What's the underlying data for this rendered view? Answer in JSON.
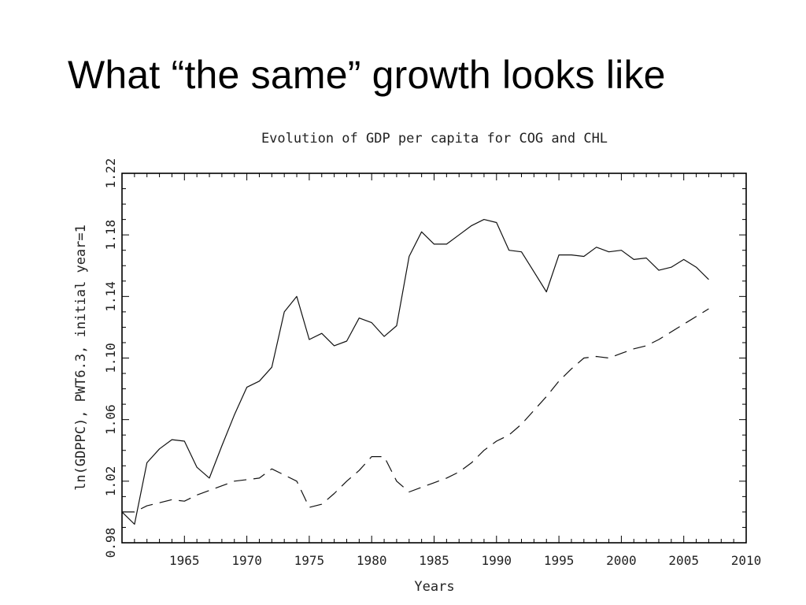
{
  "slide": {
    "title": "What “the same” growth looks like"
  },
  "chart_data": {
    "type": "line",
    "title": "Evolution of GDP per capita for COG and CHL",
    "xlabel": "Years",
    "ylabel": "ln(GDPPC), PWT6.3, initial year=1",
    "xlim": [
      1960,
      2010
    ],
    "ylim": [
      0.98,
      1.22
    ],
    "xticks": [
      "1965",
      "1970",
      "1975",
      "1980",
      "1985",
      "1990",
      "1995",
      "2000",
      "2005",
      "2010"
    ],
    "yticks": [
      "0.98",
      "1.02",
      "1.06",
      "1.10",
      "1.14",
      "1.18",
      "1.22"
    ],
    "grid": false,
    "legend": "none",
    "series": [
      {
        "style": "solid",
        "x": [
          1960,
          1961,
          1962,
          1963,
          1964,
          1965,
          1966,
          1967,
          1968,
          1969,
          1970,
          1971,
          1972,
          1973,
          1974,
          1975,
          1976,
          1977,
          1978,
          1979,
          1980,
          1981,
          1982,
          1983,
          1984,
          1985,
          1986,
          1987,
          1988,
          1989,
          1990,
          1991,
          1992,
          1993,
          1994,
          1995,
          1996,
          1997,
          1998,
          1999,
          2000,
          2001,
          2002,
          2003,
          2004,
          2005,
          2006,
          2007
        ],
        "y": [
          1.0,
          0.992,
          1.032,
          1.041,
          1.047,
          1.046,
          1.029,
          1.022,
          1.043,
          1.063,
          1.081,
          1.085,
          1.094,
          1.13,
          1.14,
          1.112,
          1.116,
          1.108,
          1.111,
          1.126,
          1.123,
          1.114,
          1.121,
          1.166,
          1.182,
          1.174,
          1.174,
          1.18,
          1.186,
          1.19,
          1.188,
          1.17,
          1.169,
          1.156,
          1.143,
          1.167,
          1.167,
          1.166,
          1.172,
          1.169,
          1.17,
          1.164,
          1.165,
          1.157,
          1.159,
          1.164,
          1.159,
          1.151
        ]
      },
      {
        "style": "dashed",
        "x": [
          1960,
          1961,
          1962,
          1963,
          1964,
          1965,
          1966,
          1967,
          1968,
          1969,
          1970,
          1971,
          1972,
          1973,
          1974,
          1975,
          1976,
          1977,
          1978,
          1979,
          1980,
          1981,
          1982,
          1983,
          1984,
          1985,
          1986,
          1987,
          1988,
          1989,
          1990,
          1991,
          1992,
          1993,
          1994,
          1995,
          1996,
          1997,
          1998,
          1999,
          2000,
          2001,
          2002,
          2003,
          2004,
          2005,
          2006,
          2007
        ],
        "y": [
          1.0,
          1.0,
          1.004,
          1.006,
          1.008,
          1.007,
          1.011,
          1.014,
          1.017,
          1.02,
          1.021,
          1.022,
          1.028,
          1.024,
          1.02,
          1.003,
          1.005,
          1.012,
          1.02,
          1.027,
          1.036,
          1.036,
          1.02,
          1.013,
          1.016,
          1.019,
          1.022,
          1.026,
          1.032,
          1.04,
          1.046,
          1.05,
          1.057,
          1.066,
          1.075,
          1.085,
          1.093,
          1.1,
          1.101,
          1.1,
          1.103,
          1.106,
          1.108,
          1.112,
          1.117,
          1.122,
          1.127,
          1.132
        ]
      }
    ]
  }
}
